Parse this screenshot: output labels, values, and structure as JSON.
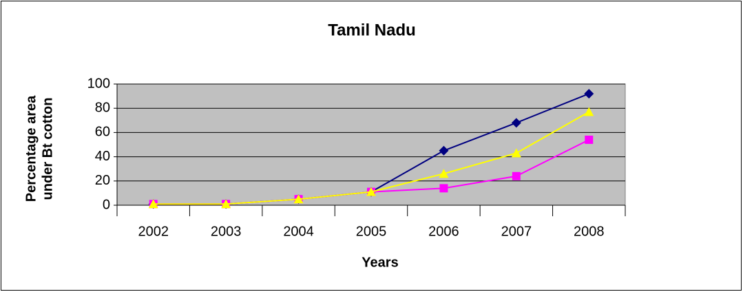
{
  "chart_data": {
    "type": "line",
    "title": "Tamil Nadu",
    "x_label": "Years",
    "y_label": [
      "Percentage area",
      "under Bt cotton"
    ],
    "categories": [
      "2002",
      "2003",
      "2004",
      "2005",
      "2006",
      "2007",
      "2008"
    ],
    "series": [
      {
        "color": "#000080",
        "marker": "diamond",
        "values": [
          1,
          1,
          5,
          11,
          45,
          68,
          92
        ]
      },
      {
        "color": "#ff00ff",
        "marker": "square",
        "values": [
          1,
          1,
          5,
          11,
          14,
          24,
          54
        ]
      },
      {
        "color": "#ffff00",
        "marker": "triangle",
        "values": [
          1,
          1,
          5,
          11,
          26,
          43,
          77
        ]
      }
    ],
    "ylim": [
      0,
      100
    ],
    "yticks": [
      0,
      20,
      40,
      60,
      80,
      100
    ],
    "grid": true
  }
}
